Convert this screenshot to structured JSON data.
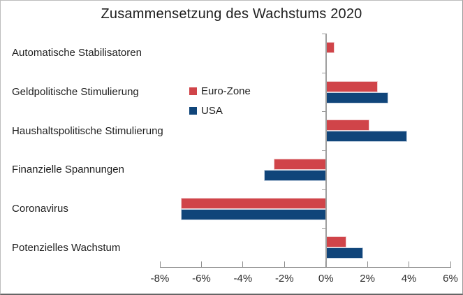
{
  "chart_data": {
    "type": "bar",
    "orientation": "horizontal",
    "title": "Zusammensetzung des Wachstums 2020",
    "categories": [
      "Automatische Stabilisatoren",
      "Geldpolitische Stimulierung",
      "Haushaltspolitische Stimulierung",
      "Finanzielle Spannungen",
      "Coronavirus",
      "Potenzielles Wachstum"
    ],
    "series": [
      {
        "name": "Euro-Zone",
        "color": "#d04449",
        "border_color": "#f1d0d2",
        "values": [
          0.4,
          2.5,
          2.1,
          -2.5,
          -7.0,
          1.0
        ]
      },
      {
        "name": "USA",
        "color": "#10457a",
        "border_color": "#c9d6e4",
        "values": [
          0.0,
          3.0,
          3.9,
          -3.0,
          -7.0,
          1.8
        ]
      }
    ],
    "unit": "%",
    "x_ticks": [
      {
        "label": "-8%",
        "value": -8
      },
      {
        "label": "-6%",
        "value": -6
      },
      {
        "label": "-4%",
        "value": -4
      },
      {
        "label": "-2%",
        "value": -2
      },
      {
        "label": "0%",
        "value": 0
      },
      {
        "label": "2%",
        "value": 2
      },
      {
        "label": "4%",
        "value": 4
      },
      {
        "label": "6%",
        "value": 6
      }
    ],
    "xlim": [
      -8,
      6
    ],
    "grid": false,
    "legend_position": "inside-upper-left-of-plot"
  }
}
